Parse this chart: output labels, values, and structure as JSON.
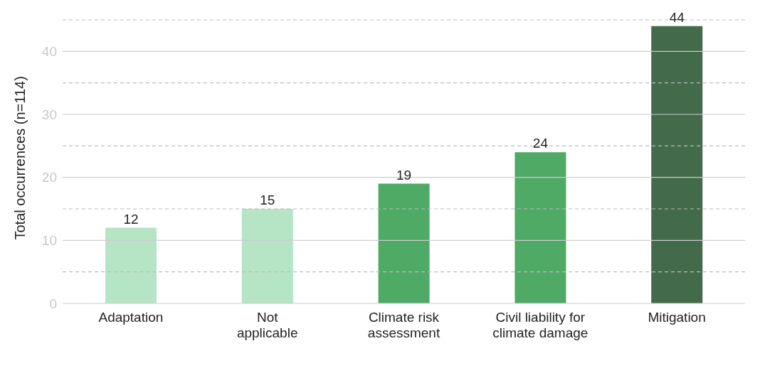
{
  "chart_data": {
    "type": "bar",
    "ylabel": "Total occurrences (n=114)",
    "categories": [
      "Adaptation",
      "Not applicable",
      "Climate risk assessment",
      "Civil liability for climate damage",
      "Mitigation"
    ],
    "values": [
      12,
      15,
      19,
      24,
      44
    ],
    "colors": [
      "#b5e5c5",
      "#b5e5c5",
      "#4faa66",
      "#4faa66",
      "#436a4a"
    ],
    "ylim": [
      0,
      45
    ],
    "yticks": [
      0,
      {
        "value": 5,
        "label": null
      },
      10,
      {
        "value": 15,
        "label": null
      },
      20,
      {
        "value": 25,
        "label": null
      },
      30,
      {
        "value": 35,
        "label": null
      },
      40,
      {
        "value": 45,
        "label": null
      }
    ],
    "grid": "y",
    "data_labels": true
  }
}
